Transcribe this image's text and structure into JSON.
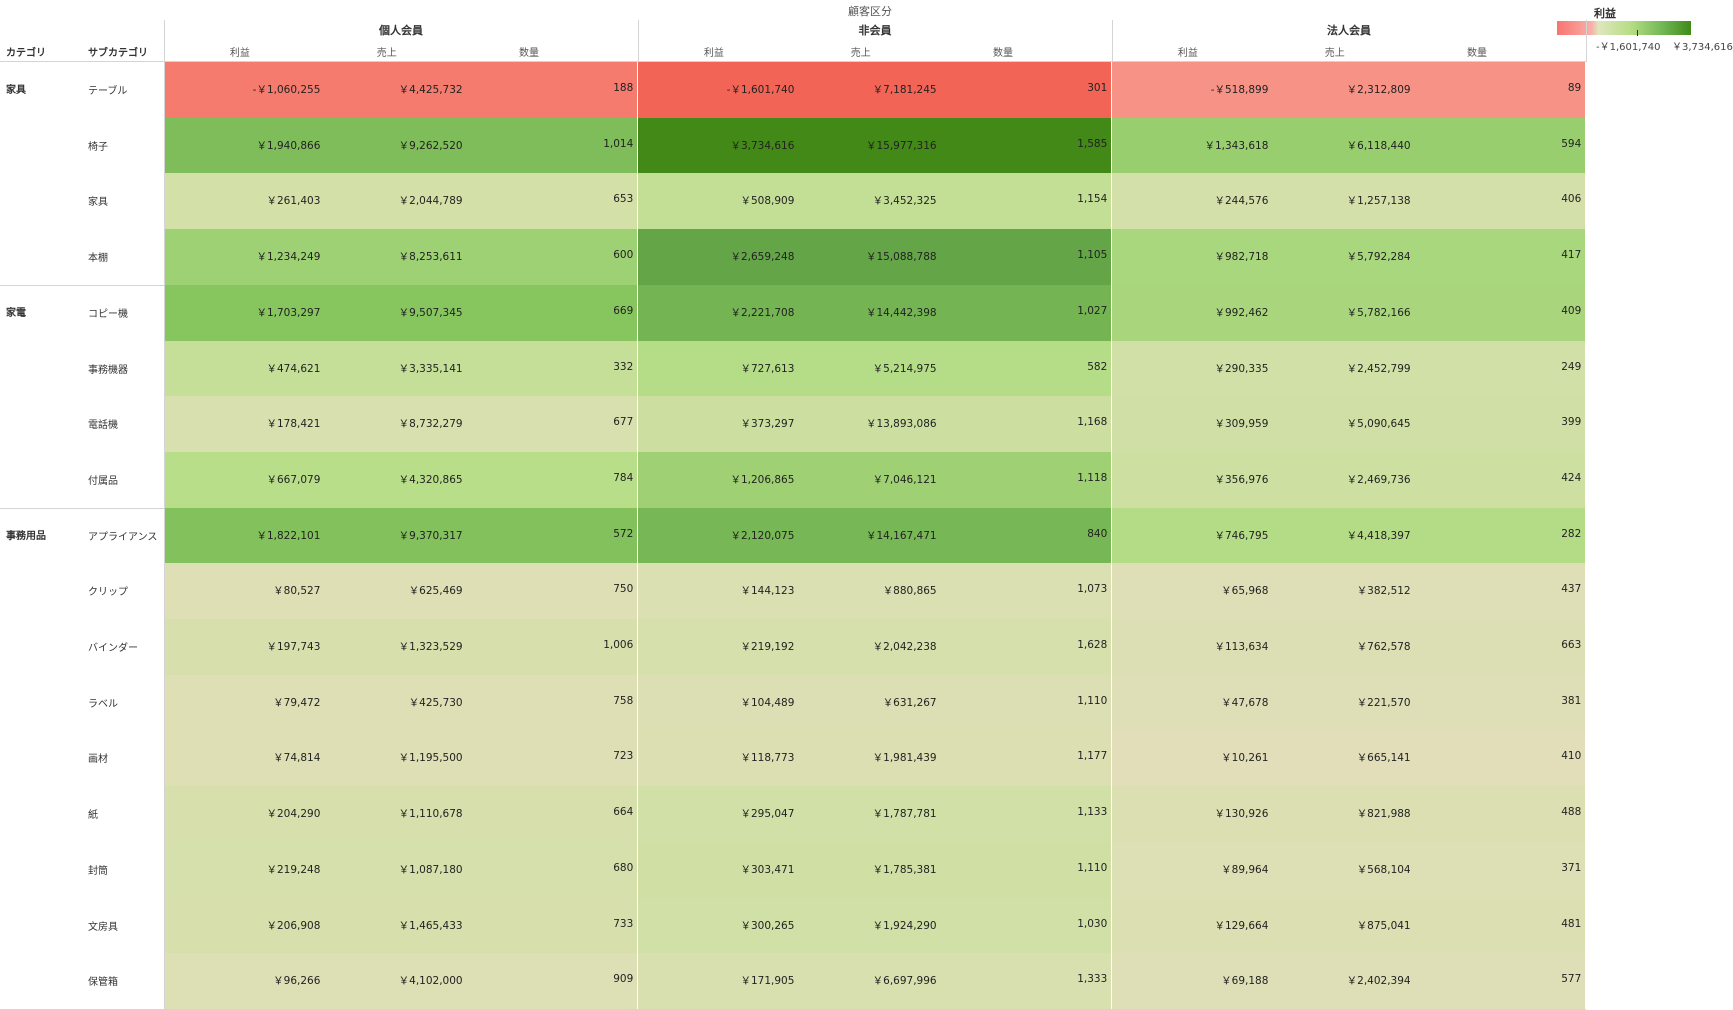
{
  "header": {
    "segment_title": "顧客区分"
  },
  "row_headers": {
    "category": "カテゴリ",
    "subcategory": "サブカテゴリ"
  },
  "segments": [
    "個人会員",
    "非会員",
    "法人会員"
  ],
  "measures": [
    "利益",
    "売上",
    "数量"
  ],
  "legend": {
    "title": "利益",
    "min_label": "-￥1,601,740",
    "max_label": "￥3,734,616",
    "min": -1601740,
    "max": 3734616
  },
  "rows": [
    {
      "category": "家具",
      "subcategory": "テーブル",
      "cells": [
        [
          -1060255,
          "-￥1,060,255",
          "￥4,425,732",
          "188"
        ],
        [
          -1601740,
          "-￥1,601,740",
          "￥7,181,245",
          "301"
        ],
        [
          -518899,
          "-￥518,899",
          "￥2,312,809",
          "89"
        ]
      ]
    },
    {
      "category": "",
      "subcategory": "椅子",
      "cells": [
        [
          1940866,
          "￥1,940,866",
          "￥9,262,520",
          "1,014"
        ],
        [
          3734616,
          "￥3,734,616",
          "￥15,977,316",
          "1,585"
        ],
        [
          1343618,
          "￥1,343,618",
          "￥6,118,440",
          "594"
        ]
      ]
    },
    {
      "category": "",
      "subcategory": "家具",
      "cells": [
        [
          261403,
          "￥261,403",
          "￥2,044,789",
          "653"
        ],
        [
          508909,
          "￥508,909",
          "￥3,452,325",
          "1,154"
        ],
        [
          244576,
          "￥244,576",
          "￥1,257,138",
          "406"
        ]
      ]
    },
    {
      "category": "",
      "subcategory": "本棚",
      "cells": [
        [
          1234249,
          "￥1,234,249",
          "￥8,253,611",
          "600"
        ],
        [
          2659248,
          "￥2,659,248",
          "￥15,088,788",
          "1,105"
        ],
        [
          982718,
          "￥982,718",
          "￥5,792,284",
          "417"
        ]
      ]
    },
    {
      "category": "家電",
      "subcategory": "コピー機",
      "cells": [
        [
          1703297,
          "￥1,703,297",
          "￥9,507,345",
          "669"
        ],
        [
          2221708,
          "￥2,221,708",
          "￥14,442,398",
          "1,027"
        ],
        [
          992462,
          "￥992,462",
          "￥5,782,166",
          "409"
        ]
      ]
    },
    {
      "category": "",
      "subcategory": "事務機器",
      "cells": [
        [
          474621,
          "￥474,621",
          "￥3,335,141",
          "332"
        ],
        [
          727613,
          "￥727,613",
          "￥5,214,975",
          "582"
        ],
        [
          290335,
          "￥290,335",
          "￥2,452,799",
          "249"
        ]
      ]
    },
    {
      "category": "",
      "subcategory": "電話機",
      "cells": [
        [
          178421,
          "￥178,421",
          "￥8,732,279",
          "677"
        ],
        [
          373297,
          "￥373,297",
          "￥13,893,086",
          "1,168"
        ],
        [
          309959,
          "￥309,959",
          "￥5,090,645",
          "399"
        ]
      ]
    },
    {
      "category": "",
      "subcategory": "付属品",
      "cells": [
        [
          667079,
          "￥667,079",
          "￥4,320,865",
          "784"
        ],
        [
          1206865,
          "￥1,206,865",
          "￥7,046,121",
          "1,118"
        ],
        [
          356976,
          "￥356,976",
          "￥2,469,736",
          "424"
        ]
      ]
    },
    {
      "category": "事務用品",
      "subcategory": "アプライアンス",
      "cells": [
        [
          1822101,
          "￥1,822,101",
          "￥9,370,317",
          "572"
        ],
        [
          2120075,
          "￥2,120,075",
          "￥14,167,471",
          "840"
        ],
        [
          746795,
          "￥746,795",
          "￥4,418,397",
          "282"
        ]
      ]
    },
    {
      "category": "",
      "subcategory": "クリップ",
      "cells": [
        [
          80527,
          "￥80,527",
          "￥625,469",
          "750"
        ],
        [
          144123,
          "￥144,123",
          "￥880,865",
          "1,073"
        ],
        [
          65968,
          "￥65,968",
          "￥382,512",
          "437"
        ]
      ]
    },
    {
      "category": "",
      "subcategory": "バインダー",
      "cells": [
        [
          197743,
          "￥197,743",
          "￥1,323,529",
          "1,006"
        ],
        [
          219192,
          "￥219,192",
          "￥2,042,238",
          "1,628"
        ],
        [
          113634,
          "￥113,634",
          "￥762,578",
          "663"
        ]
      ]
    },
    {
      "category": "",
      "subcategory": "ラベル",
      "cells": [
        [
          79472,
          "￥79,472",
          "￥425,730",
          "758"
        ],
        [
          104489,
          "￥104,489",
          "￥631,267",
          "1,110"
        ],
        [
          47678,
          "￥47,678",
          "￥221,570",
          "381"
        ]
      ]
    },
    {
      "category": "",
      "subcategory": "画材",
      "cells": [
        [
          74814,
          "￥74,814",
          "￥1,195,500",
          "723"
        ],
        [
          118773,
          "￥118,773",
          "￥1,981,439",
          "1,177"
        ],
        [
          10261,
          "￥10,261",
          "￥665,141",
          "410"
        ]
      ]
    },
    {
      "category": "",
      "subcategory": "紙",
      "cells": [
        [
          204290,
          "￥204,290",
          "￥1,110,678",
          "664"
        ],
        [
          295047,
          "￥295,047",
          "￥1,787,781",
          "1,133"
        ],
        [
          130926,
          "￥130,926",
          "￥821,988",
          "488"
        ]
      ]
    },
    {
      "category": "",
      "subcategory": "封筒",
      "cells": [
        [
          219248,
          "￥219,248",
          "￥1,087,180",
          "680"
        ],
        [
          303471,
          "￥303,471",
          "￥1,785,381",
          "1,110"
        ],
        [
          89964,
          "￥89,964",
          "￥568,104",
          "371"
        ]
      ]
    },
    {
      "category": "",
      "subcategory": "文房具",
      "cells": [
        [
          206908,
          "￥206,908",
          "￥1,465,433",
          "733"
        ],
        [
          300265,
          "￥300,265",
          "￥1,924,290",
          "1,030"
        ],
        [
          129664,
          "￥129,664",
          "￥875,041",
          "481"
        ]
      ]
    },
    {
      "category": "",
      "subcategory": "保管箱",
      "cells": [
        [
          96266,
          "￥96,266",
          "￥4,102,000",
          "909"
        ],
        [
          171905,
          "￥171,905",
          "￥6,697,996",
          "1,333"
        ],
        [
          69188,
          "￥69,188",
          "￥2,402,394",
          "577"
        ]
      ]
    }
  ]
}
